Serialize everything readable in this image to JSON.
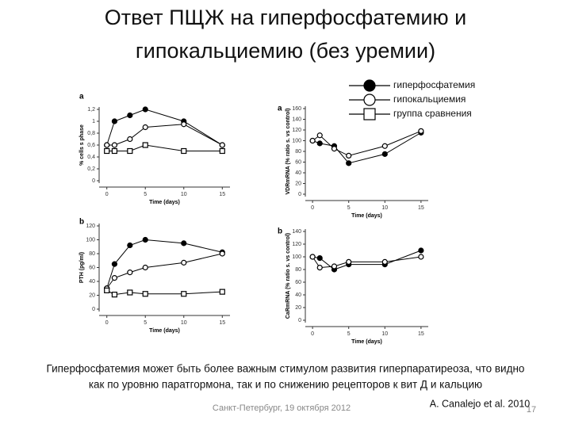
{
  "title": "Ответ ПЩЖ на гиперфосфатемию и гипокальциемию (без уремии)",
  "legend": [
    "гиперфосфатемия",
    "гипокальциемия",
    "группа сравнения"
  ],
  "caption_lines": [
    "Гиперфосфатемия может быть более важным стимулом развития гиперпаратиреоза, что видно",
    "как по уровню паратгормона, так и по снижению рецепторов к вит Д и кальцию"
  ],
  "footer": "Санкт-Петербург, 19 октября 2012",
  "citation": "A. Canalejo et al. 2010",
  "page_number": "17",
  "chart_data": [
    {
      "type": "line",
      "panel": "a",
      "xlabel": "Time (days)",
      "ylabel": "% cells s phase",
      "x": [
        0,
        1,
        3,
        5,
        10,
        15
      ],
      "xlim": [
        -1,
        16
      ],
      "xticks": [
        0,
        5,
        10,
        15
      ],
      "ylim": [
        0,
        1.2
      ],
      "yticks": [
        0,
        {
          "value": 0.2,
          "label": "0,2"
        },
        {
          "value": 0.4,
          "label": "0,4"
        },
        {
          "value": 0.6,
          "label": "0,6"
        },
        {
          "value": 0.8,
          "label": "0,8"
        },
        1,
        {
          "value": 1.2,
          "label": "1,2"
        }
      ],
      "series": [
        {
          "color": "#000000",
          "marker": "filled-circle",
          "values": [
            0.6,
            1.0,
            1.1,
            1.2,
            1.0,
            0.6
          ]
        },
        {
          "color": "#000000",
          "marker": "open-circle",
          "values": [
            0.6,
            0.6,
            0.7,
            0.9,
            0.95,
            0.6
          ]
        },
        {
          "color": "#000000",
          "marker": "open-square",
          "values": [
            0.5,
            0.5,
            0.5,
            0.6,
            0.5,
            0.5
          ]
        }
      ]
    },
    {
      "type": "line",
      "panel": "b",
      "xlabel": "Time (days)",
      "ylabel": "PTH (pg/ml)",
      "x": [
        0,
        1,
        3,
        5,
        10,
        15
      ],
      "xlim": [
        -1,
        16
      ],
      "xticks": [
        0,
        5,
        10,
        15
      ],
      "ylim": [
        0,
        120
      ],
      "yticks": [
        0,
        20,
        40,
        60,
        80,
        100,
        120
      ],
      "series": [
        {
          "color": "#000000",
          "marker": "filled-circle",
          "values": [
            30,
            65,
            92,
            100,
            95,
            82
          ]
        },
        {
          "color": "#000000",
          "marker": "open-circle",
          "values": [
            30,
            45,
            53,
            60,
            67,
            80
          ]
        },
        {
          "color": "#000000",
          "marker": "open-square",
          "values": [
            27,
            21,
            24,
            22,
            22,
            25
          ]
        }
      ]
    },
    {
      "type": "line",
      "panel": "a",
      "xlabel": "Time (days)",
      "ylabel": "VDRmRNA (% ratio s. vs control)",
      "x": [
        0,
        1,
        3,
        5,
        10,
        15
      ],
      "xlim": [
        -1,
        16
      ],
      "xticks": [
        0,
        5,
        10,
        15
      ],
      "ylim": [
        0,
        160
      ],
      "yticks": [
        0,
        20,
        40,
        60,
        80,
        100,
        120,
        140,
        160
      ],
      "series": [
        {
          "color": "#000000",
          "marker": "filled-circle",
          "values": [
            100,
            95,
            90,
            58,
            75,
            115
          ]
        },
        {
          "color": "#000000",
          "marker": "open-circle",
          "values": [
            100,
            110,
            85,
            72,
            90,
            118
          ]
        }
      ]
    },
    {
      "type": "line",
      "panel": "b",
      "xlabel": "Time (days)",
      "ylabel": "CaRmRNA (% ratio s. vs control)",
      "x": [
        0,
        1,
        3,
        5,
        10,
        15
      ],
      "xlim": [
        -1,
        16
      ],
      "xticks": [
        0,
        5,
        10,
        15
      ],
      "ylim": [
        0,
        140
      ],
      "yticks": [
        0,
        20,
        40,
        60,
        80,
        100,
        120,
        140
      ],
      "series": [
        {
          "color": "#000000",
          "marker": "filled-circle",
          "values": [
            100,
            98,
            80,
            88,
            88,
            110
          ]
        },
        {
          "color": "#000000",
          "marker": "open-circle",
          "values": [
            100,
            83,
            85,
            92,
            92,
            100
          ]
        }
      ]
    }
  ]
}
